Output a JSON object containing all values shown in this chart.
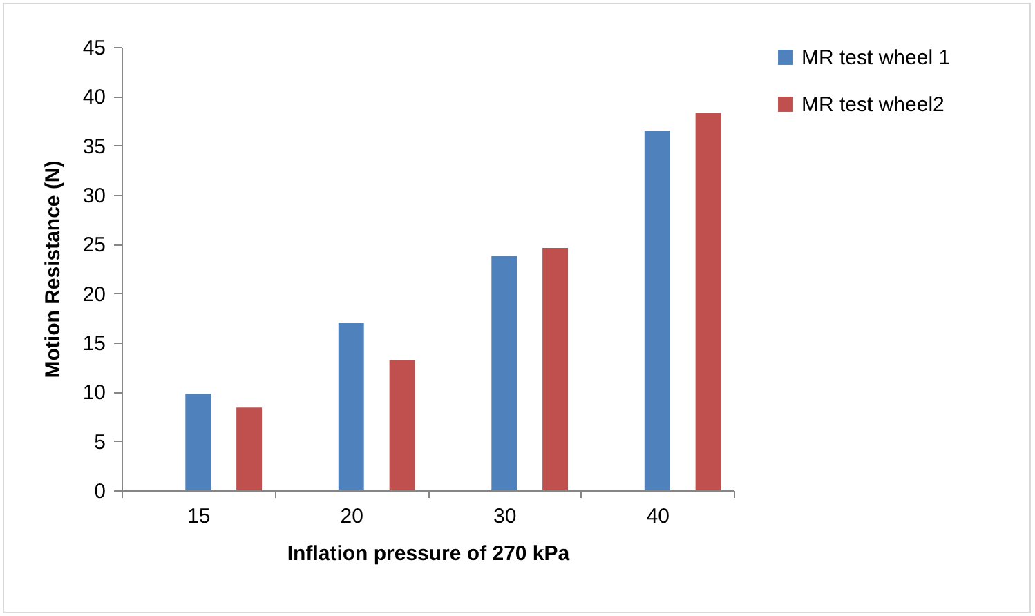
{
  "chart_data": {
    "type": "bar",
    "xlabel": "Inflation pressure of 270 kPa",
    "ylabel": "Motion Resistance (N)",
    "categories": [
      "15",
      "20",
      "30",
      "40"
    ],
    "series": [
      {
        "name": "MR test wheel 1",
        "color": "#4f81bd",
        "values": [
          9.8,
          17.0,
          23.8,
          36.5
        ]
      },
      {
        "name": "MR test wheel2",
        "color": "#c0504d",
        "values": [
          8.4,
          13.2,
          24.6,
          38.3
        ]
      }
    ],
    "ylim": [
      0,
      45
    ],
    "yticks": [
      0,
      5,
      10,
      15,
      20,
      25,
      30,
      35,
      40,
      45
    ],
    "grid": false,
    "legend": "right"
  }
}
